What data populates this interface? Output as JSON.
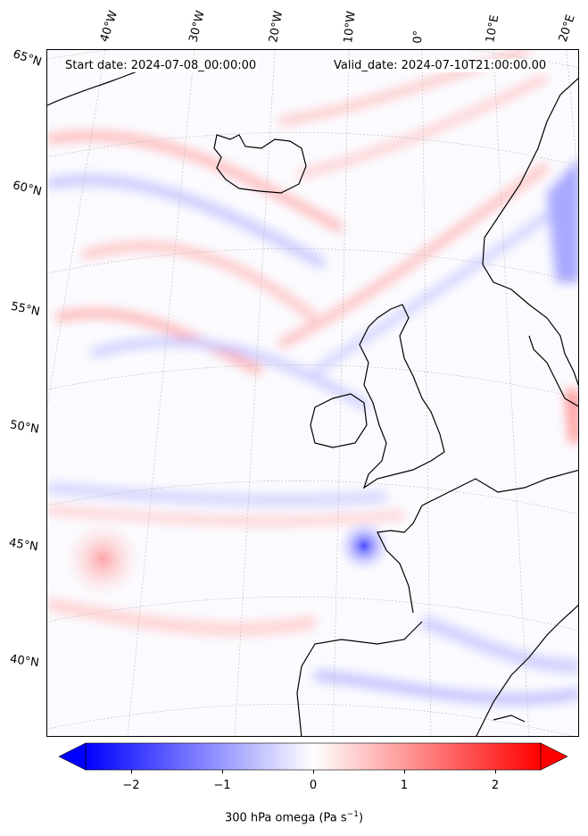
{
  "header": {
    "start_date": "Start date: 2024-07-08_00:00:00",
    "valid_date": "Valid_date: 2024-07-10T21:00:00.00"
  },
  "map": {
    "projection": "conic",
    "extent": {
      "lon": [
        -45,
        20
      ],
      "lat": [
        36,
        66
      ]
    },
    "longitude_labels": [
      "40°W",
      "30°W",
      "20°W",
      "10°W",
      "0°",
      "10°E",
      "20°E"
    ],
    "latitude_labels": [
      "65°N",
      "60°N",
      "55°N",
      "50°N",
      "45°N",
      "40°N"
    ],
    "gridlines": true,
    "field": "300 hPa omega"
  },
  "colorbar": {
    "ticks": [
      "−2",
      "−1",
      "0",
      "1",
      "2"
    ],
    "tick_values": [
      -2,
      -1,
      0,
      1,
      2
    ],
    "range": [
      -2.5,
      2.5
    ],
    "extend": "both",
    "label_prefix": "300 hPa omega (Pa s",
    "label_exp": "−1",
    "label_suffix": ")",
    "colors": {
      "min": "#0000ff",
      "mid": "#ffffff",
      "max": "#ff0000"
    }
  }
}
